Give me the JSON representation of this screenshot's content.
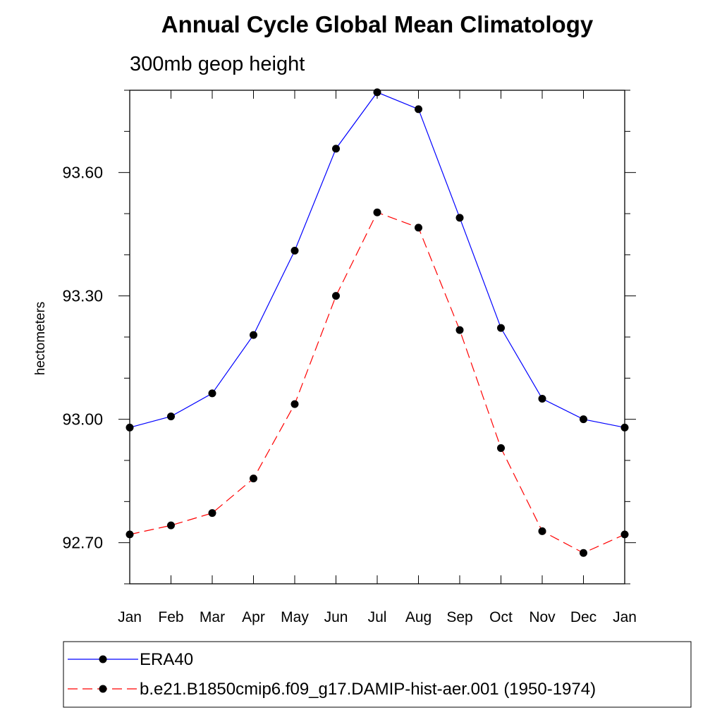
{
  "chart_data": {
    "type": "line",
    "title": "Annual Cycle Global Mean Climatology",
    "subtitle": "300mb geop height",
    "xlabel": "",
    "ylabel": "hectometers",
    "categories": [
      "Jan",
      "Feb",
      "Mar",
      "Apr",
      "May",
      "Jun",
      "Jul",
      "Aug",
      "Sep",
      "Oct",
      "Nov",
      "Dec",
      "Jan"
    ],
    "ylim": [
      92.6,
      93.8
    ],
    "yticks": [
      92.7,
      93.0,
      93.3,
      93.6
    ],
    "ytick_labels": [
      "92.70",
      "93.00",
      "93.30",
      "93.60"
    ],
    "grid": false,
    "legend_position": "bottom",
    "series": [
      {
        "name": "ERA40",
        "color": "#0000ff",
        "dash": "solid",
        "marker": "filled-circle",
        "values": [
          92.98,
          93.007,
          93.063,
          93.205,
          93.41,
          93.658,
          93.795,
          93.754,
          93.49,
          93.222,
          93.05,
          93.0,
          92.98
        ]
      },
      {
        "name": "b.e21.B1850cmip6.f09_g17.DAMIP-hist-aer.001 (1950-1974)",
        "color": "#ff0000",
        "dash": "dashed",
        "marker": "filled-circle",
        "values": [
          92.72,
          92.742,
          92.772,
          92.856,
          93.037,
          93.3,
          93.503,
          93.466,
          93.217,
          92.93,
          92.728,
          92.675,
          92.72
        ]
      }
    ]
  }
}
